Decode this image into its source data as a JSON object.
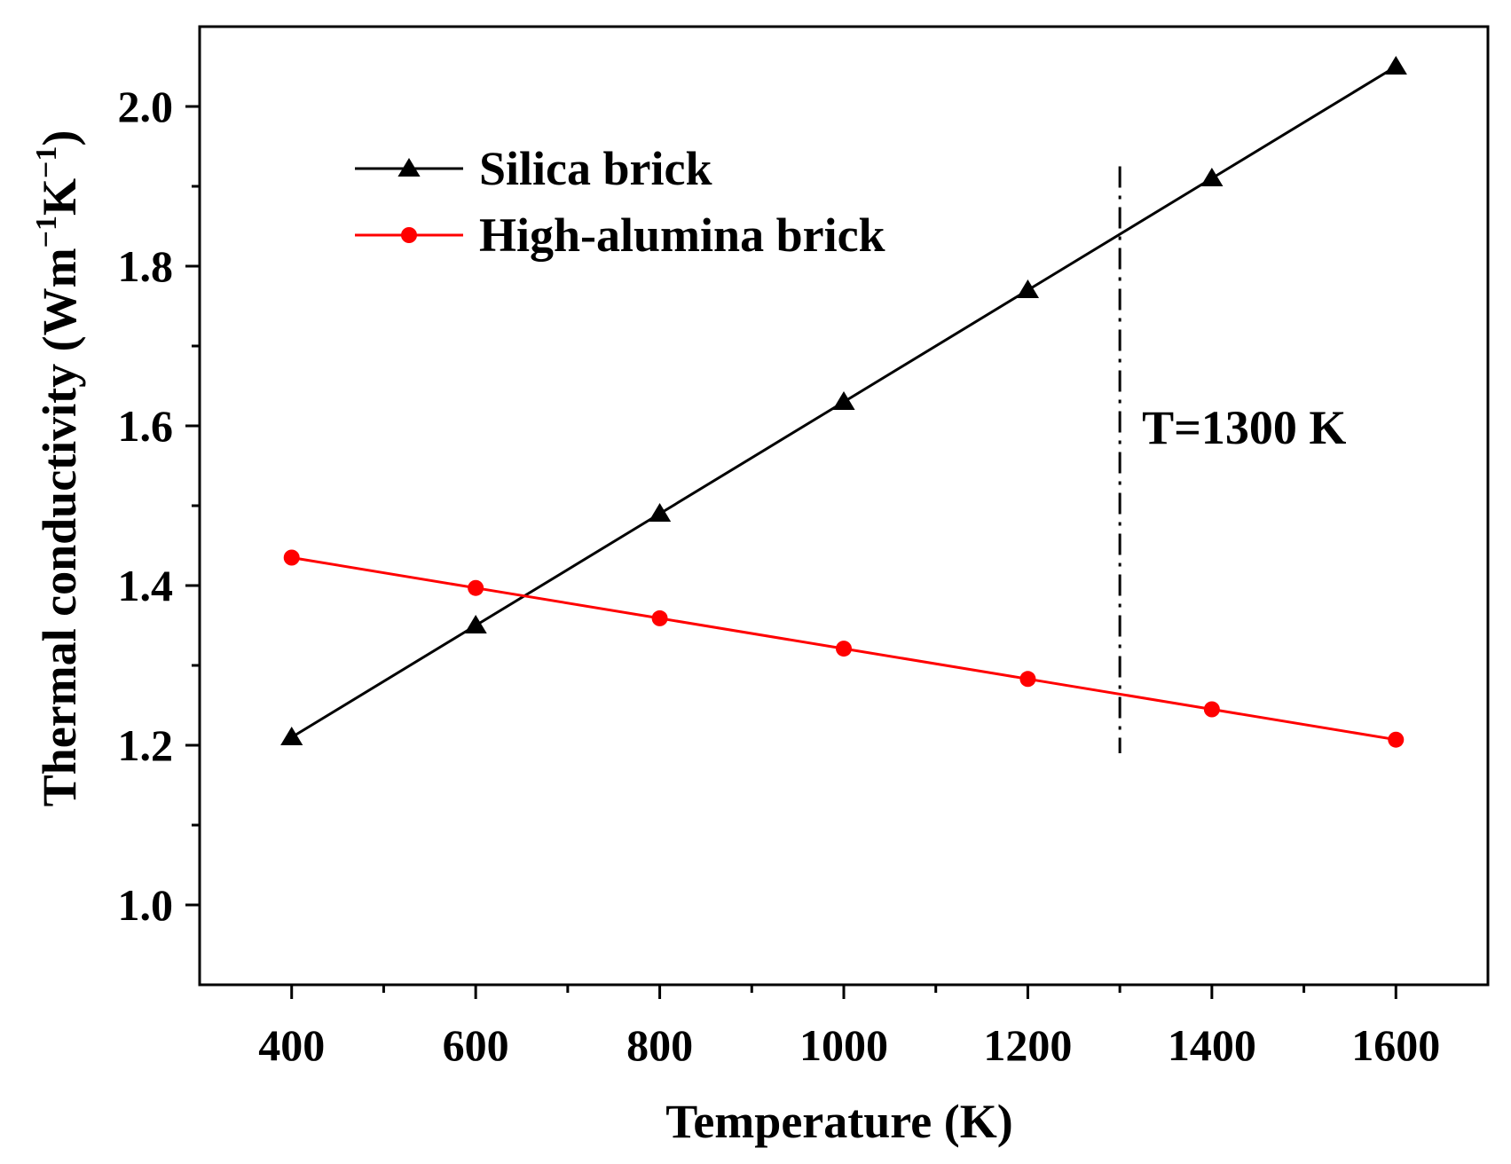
{
  "chart_data": {
    "type": "line",
    "title": "",
    "xlabel": "Temperature (K)",
    "ylabel_main": "Thermal conductivity (Wm",
    "ylabel_sup1": "−1",
    "ylabel_mid": "K",
    "ylabel_sup2": "−1",
    "ylabel_end": ")",
    "xlim": [
      300,
      1700
    ],
    "ylim": [
      0.9,
      2.1
    ],
    "x_ticks": [
      400,
      600,
      800,
      1000,
      1200,
      1400,
      1600
    ],
    "x_tick_labels": [
      "400",
      "600",
      "800",
      "1000",
      "1200",
      "1400",
      "1600"
    ],
    "x_minor_ticks": [
      500,
      700,
      900,
      1100,
      1300,
      1500
    ],
    "y_ticks": [
      1.0,
      1.2,
      1.4,
      1.6,
      1.8,
      2.0
    ],
    "y_tick_labels": [
      "1.0",
      "1.2",
      "1.4",
      "1.6",
      "1.8",
      "2.0"
    ],
    "y_minor_ticks": [
      1.1,
      1.3,
      1.5,
      1.7,
      1.9
    ],
    "grid": false,
    "legend_position": "top-left",
    "series": [
      {
        "name": "Silica brick",
        "color": "#000000",
        "marker": "triangle",
        "x": [
          400,
          600,
          800,
          1000,
          1200,
          1400,
          1600
        ],
        "values": [
          1.21,
          1.35,
          1.49,
          1.63,
          1.77,
          1.91,
          2.05
        ]
      },
      {
        "name": "High-alumina brick",
        "color": "#ff0000",
        "marker": "circle",
        "x": [
          400,
          600,
          800,
          1000,
          1200,
          1400,
          1600
        ],
        "values": [
          1.435,
          1.397,
          1.359,
          1.321,
          1.283,
          1.245,
          1.207
        ]
      }
    ],
    "annotations": [
      {
        "type": "vline",
        "x": 1300,
        "y_range": [
          1.19,
          1.925
        ],
        "style": "dash-dot",
        "text": "T=1300 K"
      }
    ]
  }
}
